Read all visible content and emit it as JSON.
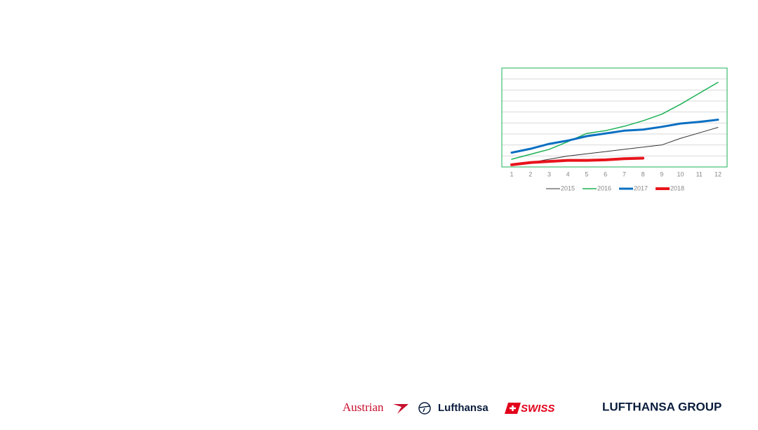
{
  "chart_data": {
    "type": "line",
    "categories": [
      "1",
      "2",
      "3",
      "4",
      "5",
      "6",
      "7",
      "8",
      "9",
      "10",
      "11",
      "12"
    ],
    "series": [
      {
        "name": "2015",
        "color": "#333333",
        "width": 1,
        "values": [
          0.2,
          0.4,
          0.7,
          1.0,
          1.2,
          1.4,
          1.6,
          1.8,
          2.0,
          2.6,
          3.1,
          3.6
        ]
      },
      {
        "name": "2016",
        "color": "#1db257",
        "width": 1.5,
        "values": [
          0.7,
          1.15,
          1.6,
          2.3,
          3.05,
          3.3,
          3.7,
          4.2,
          4.8,
          5.7,
          6.7,
          7.7
        ]
      },
      {
        "name": "2017",
        "color": "#0a6fc2",
        "width": 3,
        "values": [
          1.3,
          1.65,
          2.1,
          2.4,
          2.8,
          3.05,
          3.3,
          3.4,
          3.65,
          3.95,
          4.1,
          4.3
        ]
      },
      {
        "name": "2018",
        "color": "#e8141c",
        "width": 4,
        "values": [
          0.2,
          0.4,
          0.5,
          0.6,
          0.6,
          0.65,
          0.75,
          0.8,
          null,
          null,
          null,
          null
        ]
      }
    ],
    "ylim": [
      0,
      9
    ],
    "yticks": [
      0,
      1,
      2,
      3,
      4,
      5,
      6,
      7,
      8,
      9
    ],
    "grid": true,
    "legend": "bottom"
  },
  "logos": {
    "austrian": "Austrian",
    "lufthansa": "Lufthansa",
    "swiss": "SWISS",
    "group": "LUFTHANSA GROUP"
  }
}
